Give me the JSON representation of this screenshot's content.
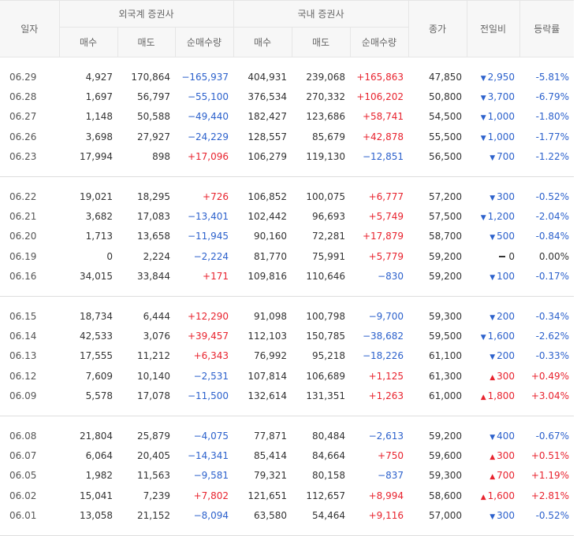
{
  "headers": {
    "date": "일자",
    "foreign": "외국계 증권사",
    "domestic": "국내 증권사",
    "buy": "매수",
    "sell": "매도",
    "net": "순매수량",
    "close": "종가",
    "diff": "전일비",
    "rate": "등락률"
  },
  "groups": [
    [
      {
        "date": "06.29",
        "f_buy": "4,927",
        "f_sell": "170,864",
        "f_net": "−165,937",
        "f_net_dir": "down",
        "d_buy": "404,931",
        "d_sell": "239,068",
        "d_net": "+165,863",
        "d_net_dir": "up",
        "close": "47,850",
        "diff": "2,950",
        "diff_dir": "down",
        "rate": "-5.81%",
        "rate_dir": "down"
      },
      {
        "date": "06.28",
        "f_buy": "1,697",
        "f_sell": "56,797",
        "f_net": "−55,100",
        "f_net_dir": "down",
        "d_buy": "376,534",
        "d_sell": "270,332",
        "d_net": "+106,202",
        "d_net_dir": "up",
        "close": "50,800",
        "diff": "3,700",
        "diff_dir": "down",
        "rate": "-6.79%",
        "rate_dir": "down"
      },
      {
        "date": "06.27",
        "f_buy": "1,148",
        "f_sell": "50,588",
        "f_net": "−49,440",
        "f_net_dir": "down",
        "d_buy": "182,427",
        "d_sell": "123,686",
        "d_net": "+58,741",
        "d_net_dir": "up",
        "close": "54,500",
        "diff": "1,000",
        "diff_dir": "down",
        "rate": "-1.80%",
        "rate_dir": "down"
      },
      {
        "date": "06.26",
        "f_buy": "3,698",
        "f_sell": "27,927",
        "f_net": "−24,229",
        "f_net_dir": "down",
        "d_buy": "128,557",
        "d_sell": "85,679",
        "d_net": "+42,878",
        "d_net_dir": "up",
        "close": "55,500",
        "diff": "1,000",
        "diff_dir": "down",
        "rate": "-1.77%",
        "rate_dir": "down"
      },
      {
        "date": "06.23",
        "f_buy": "17,994",
        "f_sell": "898",
        "f_net": "+17,096",
        "f_net_dir": "up",
        "d_buy": "106,279",
        "d_sell": "119,130",
        "d_net": "−12,851",
        "d_net_dir": "down",
        "close": "56,500",
        "diff": "700",
        "diff_dir": "down",
        "rate": "-1.22%",
        "rate_dir": "down"
      }
    ],
    [
      {
        "date": "06.22",
        "f_buy": "19,021",
        "f_sell": "18,295",
        "f_net": "+726",
        "f_net_dir": "up",
        "d_buy": "106,852",
        "d_sell": "100,075",
        "d_net": "+6,777",
        "d_net_dir": "up",
        "close": "57,200",
        "diff": "300",
        "diff_dir": "down",
        "rate": "-0.52%",
        "rate_dir": "down"
      },
      {
        "date": "06.21",
        "f_buy": "3,682",
        "f_sell": "17,083",
        "f_net": "−13,401",
        "f_net_dir": "down",
        "d_buy": "102,442",
        "d_sell": "96,693",
        "d_net": "+5,749",
        "d_net_dir": "up",
        "close": "57,500",
        "diff": "1,200",
        "diff_dir": "down",
        "rate": "-2.04%",
        "rate_dir": "down"
      },
      {
        "date": "06.20",
        "f_buy": "1,713",
        "f_sell": "13,658",
        "f_net": "−11,945",
        "f_net_dir": "down",
        "d_buy": "90,160",
        "d_sell": "72,281",
        "d_net": "+17,879",
        "d_net_dir": "up",
        "close": "58,700",
        "diff": "500",
        "diff_dir": "down",
        "rate": "-0.84%",
        "rate_dir": "down"
      },
      {
        "date": "06.19",
        "f_buy": "0",
        "f_sell": "2,224",
        "f_net": "−2,224",
        "f_net_dir": "down",
        "d_buy": "81,770",
        "d_sell": "75,991",
        "d_net": "+5,779",
        "d_net_dir": "up",
        "close": "59,200",
        "diff": "0",
        "diff_dir": "neu",
        "rate": "0.00%",
        "rate_dir": "neu"
      },
      {
        "date": "06.16",
        "f_buy": "34,015",
        "f_sell": "33,844",
        "f_net": "+171",
        "f_net_dir": "up",
        "d_buy": "109,816",
        "d_sell": "110,646",
        "d_net": "−830",
        "d_net_dir": "down",
        "close": "59,200",
        "diff": "100",
        "diff_dir": "down",
        "rate": "-0.17%",
        "rate_dir": "down"
      }
    ],
    [
      {
        "date": "06.15",
        "f_buy": "18,734",
        "f_sell": "6,444",
        "f_net": "+12,290",
        "f_net_dir": "up",
        "d_buy": "91,098",
        "d_sell": "100,798",
        "d_net": "−9,700",
        "d_net_dir": "down",
        "close": "59,300",
        "diff": "200",
        "diff_dir": "down",
        "rate": "-0.34%",
        "rate_dir": "down"
      },
      {
        "date": "06.14",
        "f_buy": "42,533",
        "f_sell": "3,076",
        "f_net": "+39,457",
        "f_net_dir": "up",
        "d_buy": "112,103",
        "d_sell": "150,785",
        "d_net": "−38,682",
        "d_net_dir": "down",
        "close": "59,500",
        "diff": "1,600",
        "diff_dir": "down",
        "rate": "-2.62%",
        "rate_dir": "down"
      },
      {
        "date": "06.13",
        "f_buy": "17,555",
        "f_sell": "11,212",
        "f_net": "+6,343",
        "f_net_dir": "up",
        "d_buy": "76,992",
        "d_sell": "95,218",
        "d_net": "−18,226",
        "d_net_dir": "down",
        "close": "61,100",
        "diff": "200",
        "diff_dir": "down",
        "rate": "-0.33%",
        "rate_dir": "down"
      },
      {
        "date": "06.12",
        "f_buy": "7,609",
        "f_sell": "10,140",
        "f_net": "−2,531",
        "f_net_dir": "down",
        "d_buy": "107,814",
        "d_sell": "106,689",
        "d_net": "+1,125",
        "d_net_dir": "up",
        "close": "61,300",
        "diff": "300",
        "diff_dir": "up",
        "rate": "+0.49%",
        "rate_dir": "up"
      },
      {
        "date": "06.09",
        "f_buy": "5,578",
        "f_sell": "17,078",
        "f_net": "−11,500",
        "f_net_dir": "down",
        "d_buy": "132,614",
        "d_sell": "131,351",
        "d_net": "+1,263",
        "d_net_dir": "up",
        "close": "61,000",
        "diff": "1,800",
        "diff_dir": "up",
        "rate": "+3.04%",
        "rate_dir": "up"
      }
    ],
    [
      {
        "date": "06.08",
        "f_buy": "21,804",
        "f_sell": "25,879",
        "f_net": "−4,075",
        "f_net_dir": "down",
        "d_buy": "77,871",
        "d_sell": "80,484",
        "d_net": "−2,613",
        "d_net_dir": "down",
        "close": "59,200",
        "diff": "400",
        "diff_dir": "down",
        "rate": "-0.67%",
        "rate_dir": "down"
      },
      {
        "date": "06.07",
        "f_buy": "6,064",
        "f_sell": "20,405",
        "f_net": "−14,341",
        "f_net_dir": "down",
        "d_buy": "85,414",
        "d_sell": "84,664",
        "d_net": "+750",
        "d_net_dir": "up",
        "close": "59,600",
        "diff": "300",
        "diff_dir": "up",
        "rate": "+0.51%",
        "rate_dir": "up"
      },
      {
        "date": "06.05",
        "f_buy": "1,982",
        "f_sell": "11,563",
        "f_net": "−9,581",
        "f_net_dir": "down",
        "d_buy": "79,321",
        "d_sell": "80,158",
        "d_net": "−837",
        "d_net_dir": "down",
        "close": "59,300",
        "diff": "700",
        "diff_dir": "up",
        "rate": "+1.19%",
        "rate_dir": "up"
      },
      {
        "date": "06.02",
        "f_buy": "15,041",
        "f_sell": "7,239",
        "f_net": "+7,802",
        "f_net_dir": "up",
        "d_buy": "121,651",
        "d_sell": "112,657",
        "d_net": "+8,994",
        "d_net_dir": "up",
        "close": "58,600",
        "diff": "1,600",
        "diff_dir": "up",
        "rate": "+2.81%",
        "rate_dir": "up"
      },
      {
        "date": "06.01",
        "f_buy": "13,058",
        "f_sell": "21,152",
        "f_net": "−8,094",
        "f_net_dir": "down",
        "d_buy": "63,580",
        "d_sell": "54,464",
        "d_net": "+9,116",
        "d_net_dir": "up",
        "close": "57,000",
        "diff": "300",
        "diff_dir": "down",
        "rate": "-0.52%",
        "rate_dir": "down"
      }
    ]
  ]
}
